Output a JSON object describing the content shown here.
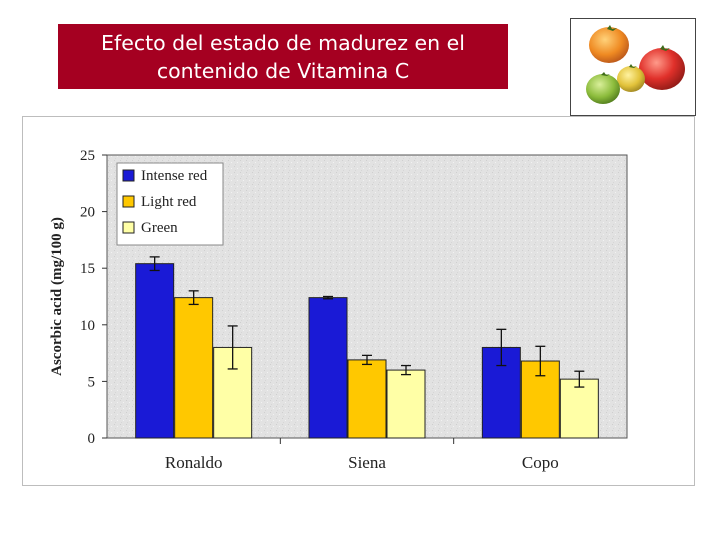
{
  "slide": {
    "title_line1": "Efecto del estado de madurez en el",
    "title_line2": "contenido de Vitamina C",
    "photo_icon": "tomatoes-photo"
  },
  "colors": {
    "title_bg": "#a50021",
    "intense_red": "#1a1ad6",
    "light_red": "#ffc800",
    "green": "#ffffa6",
    "plot_bg": "#e2e2e2"
  },
  "chart_data": {
    "type": "bar",
    "ylabel": "Ascorbic acid (mg/100 g)",
    "xlabel": "",
    "ylim": [
      0,
      25
    ],
    "yticks": [
      "0",
      "5",
      "10",
      "15",
      "20",
      "25"
    ],
    "categories": [
      "Ronaldo",
      "Siena",
      "Copo"
    ],
    "legend_position": "top-left",
    "grid": false,
    "series": [
      {
        "name": "Intense red",
        "values": [
          15.4,
          12.4,
          8.0
        ],
        "errors": [
          0.6,
          0.1,
          1.6
        ]
      },
      {
        "name": "Light red",
        "values": [
          12.4,
          6.9,
          6.8
        ],
        "errors": [
          0.6,
          0.4,
          1.3
        ]
      },
      {
        "name": "Green",
        "values": [
          8.0,
          6.0,
          5.2
        ],
        "errors": [
          1.9,
          0.4,
          0.7
        ]
      }
    ]
  }
}
